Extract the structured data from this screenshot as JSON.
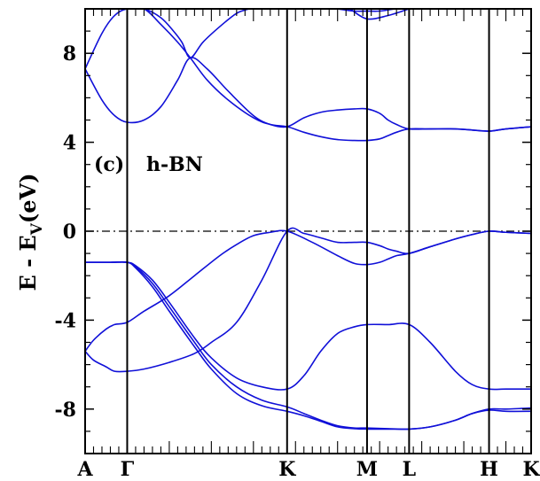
{
  "chart_data": {
    "type": "line",
    "title": "",
    "xlabel": "",
    "ylabel": "E - E",
    "ylabel_sub": "V",
    "ylabel_unit": "(eV)",
    "annotation_panel": "(c)",
    "annotation_material": "h-BN",
    "ylim": [
      -10,
      10
    ],
    "y_ticks": [
      8,
      4,
      0,
      -4,
      -8
    ],
    "y_tick_labels": [
      "8",
      "4",
      "0",
      "-4",
      "-8"
    ],
    "k_points": [
      {
        "label": "A",
        "x": 0.0
      },
      {
        "label": "Γ",
        "x": 0.5
      },
      {
        "label": "K",
        "x": 2.4
      },
      {
        "label": "M",
        "x": 3.35
      },
      {
        "label": "L",
        "x": 3.85
      },
      {
        "label": "H",
        "x": 4.8
      },
      {
        "label": "K",
        "x": 5.3
      }
    ],
    "fermi_level": 0,
    "colors": {
      "bands": "#1010d8",
      "fermi": "#000000",
      "frame": "#000000"
    },
    "series": [
      {
        "x": [
          0.0,
          0.1,
          0.25,
          0.35,
          0.5,
          0.7,
          1.0,
          1.3,
          1.5,
          1.8,
          2.1,
          2.4,
          2.6,
          2.8,
          3.0,
          3.2,
          3.35,
          3.5,
          3.6,
          3.7,
          3.85,
          4.1,
          4.4,
          4.6,
          4.8,
          5.0,
          5.3
        ],
        "y": [
          -5.4,
          -5.8,
          -6.1,
          -6.3,
          -6.3,
          -6.2,
          -5.9,
          -5.5,
          -5.0,
          -4.1,
          -2.2,
          0.0,
          -0.1,
          -0.3,
          -0.5,
          -0.5,
          -0.5,
          -0.65,
          -0.8,
          -0.9,
          -1.0,
          -0.7,
          -0.35,
          -0.15,
          0.0,
          -0.05,
          -0.1
        ]
      },
      {
        "x": [
          0.0,
          0.1,
          0.25,
          0.35,
          0.5,
          0.7,
          1.0,
          1.3,
          1.6,
          1.8,
          2.0,
          2.2,
          2.4,
          2.7,
          3.0,
          3.2,
          3.35,
          3.5,
          3.6,
          3.7,
          3.85,
          4.1,
          4.4,
          4.6,
          4.8,
          5.0,
          5.3
        ],
        "y": [
          -5.4,
          -4.9,
          -4.4,
          -4.2,
          -4.1,
          -3.6,
          -2.9,
          -2.0,
          -1.1,
          -0.6,
          -0.2,
          -0.05,
          0.0,
          -0.5,
          -1.1,
          -1.45,
          -1.5,
          -1.4,
          -1.25,
          -1.1,
          -1.0,
          -0.7,
          -0.35,
          -0.15,
          0.0,
          -0.05,
          -0.1
        ]
      },
      {
        "x": [
          0.0,
          0.3,
          0.5,
          0.6,
          0.8,
          1.0,
          1.3,
          1.5,
          1.8,
          2.1,
          2.4,
          2.6,
          2.8,
          3.0,
          3.2,
          3.35,
          3.6,
          3.85,
          4.1,
          4.4,
          4.6,
          4.8,
          5.0,
          5.3
        ],
        "y": [
          -1.4,
          -1.4,
          -1.4,
          -1.55,
          -2.2,
          -3.2,
          -4.8,
          -5.7,
          -6.6,
          -7.0,
          -7.1,
          -6.5,
          -5.4,
          -4.6,
          -4.3,
          -4.2,
          -4.2,
          -4.2,
          -5.0,
          -6.3,
          -6.9,
          -7.1,
          -7.1,
          -7.1
        ]
      },
      {
        "x": [
          0.0,
          0.3,
          0.5,
          0.6,
          0.8,
          1.0,
          1.3,
          1.5,
          1.8,
          2.1,
          2.4,
          2.6,
          2.8,
          3.0,
          3.2,
          3.35,
          3.6,
          3.85,
          4.1,
          4.4,
          4.6,
          4.8,
          5.0,
          5.3
        ],
        "y": [
          -1.4,
          -1.4,
          -1.4,
          -1.6,
          -2.35,
          -3.4,
          -5.0,
          -6.0,
          -7.0,
          -7.6,
          -7.9,
          -8.2,
          -8.5,
          -8.75,
          -8.85,
          -8.85,
          -8.88,
          -8.9,
          -8.8,
          -8.5,
          -8.2,
          -8.0,
          -8.0,
          -7.95
        ]
      },
      {
        "x": [
          0.0,
          0.3,
          0.5,
          0.6,
          0.8,
          1.0,
          1.3,
          1.5,
          1.8,
          2.1,
          2.4,
          2.6,
          2.8,
          3.0,
          3.2,
          3.35,
          3.6,
          3.85,
          4.1,
          4.4,
          4.6,
          4.8,
          5.0,
          5.3
        ],
        "y": [
          -1.4,
          -1.4,
          -1.4,
          -1.65,
          -2.5,
          -3.6,
          -5.2,
          -6.2,
          -7.3,
          -7.85,
          -8.1,
          -8.3,
          -8.55,
          -8.8,
          -8.88,
          -8.9,
          -8.9,
          -8.9,
          -8.8,
          -8.5,
          -8.2,
          -8.05,
          -8.1,
          -8.1
        ]
      },
      {
        "x": [
          0.0,
          0.2,
          0.35,
          0.5,
          0.7,
          0.9,
          1.1,
          1.25,
          1.45,
          1.7,
          2.0,
          2.2,
          2.4,
          2.6,
          2.8,
          3.0,
          3.2,
          3.35,
          3.5,
          3.6,
          3.7,
          3.85,
          4.1,
          4.4,
          4.6,
          4.8,
          5.0,
          5.3
        ],
        "y": [
          7.3,
          5.9,
          5.2,
          4.9,
          5.0,
          5.6,
          6.8,
          7.8,
          7.3,
          6.3,
          5.2,
          4.8,
          4.7,
          5.1,
          5.35,
          5.45,
          5.5,
          5.5,
          5.3,
          5.0,
          4.8,
          4.6,
          4.6,
          4.6,
          4.55,
          4.5,
          4.6,
          4.7
        ]
      },
      {
        "x": [
          0.0,
          0.2,
          0.35,
          0.5,
          0.7,
          0.9,
          1.1,
          1.25,
          1.45,
          1.7,
          2.0,
          2.2,
          2.4,
          2.6,
          2.8,
          3.0,
          3.2,
          3.35,
          3.5,
          3.6,
          3.7,
          3.85,
          4.1,
          4.4,
          4.6,
          4.8,
          5.0,
          5.3
        ],
        "y": [
          7.3,
          8.9,
          9.7,
          10.0,
          10.0,
          9.3,
          8.5,
          7.8,
          6.8,
          5.9,
          5.1,
          4.8,
          4.7,
          4.45,
          4.25,
          4.12,
          4.08,
          4.08,
          4.15,
          4.3,
          4.45,
          4.6,
          4.6,
          4.6,
          4.55,
          4.5,
          4.6,
          4.7
        ]
      },
      {
        "x": [
          0.5,
          0.7,
          0.9,
          1.05,
          1.15,
          1.25,
          1.4,
          1.6,
          1.8,
          1.95
        ],
        "y": [
          10.0,
          10.0,
          9.6,
          9.0,
          8.5,
          7.8,
          8.5,
          9.2,
          9.8,
          10.0
        ]
      },
      {
        "x": [
          3.0,
          3.2,
          3.35,
          3.5,
          3.7,
          3.85
        ],
        "y": [
          10.0,
          9.9,
          9.9,
          9.9,
          10.0,
          10.0
        ]
      },
      {
        "x": [
          3.15,
          3.35,
          3.6,
          3.85
        ],
        "y": [
          10.0,
          9.55,
          9.7,
          10.0
        ]
      }
    ]
  }
}
